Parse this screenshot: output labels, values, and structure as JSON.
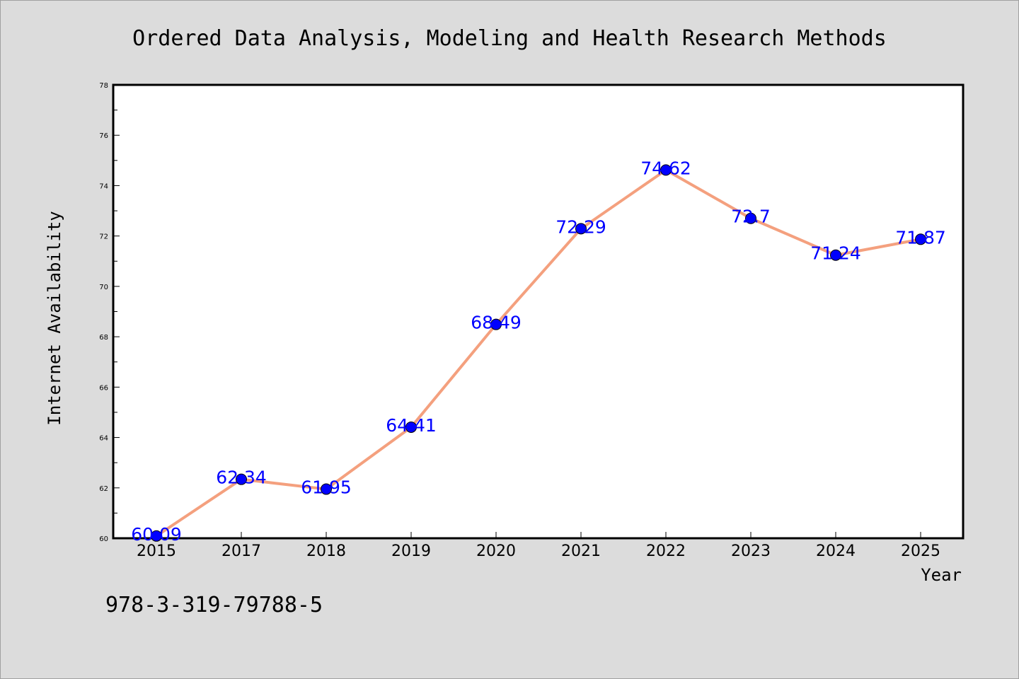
{
  "chart_data": {
    "type": "line",
    "title": "Ordered Data Analysis, Modeling and Health Research Methods",
    "xlabel": "Year",
    "ylabel": "Internet Availability",
    "categories": [
      "2015",
      "2017",
      "2018",
      "2019",
      "2020",
      "2021",
      "2022",
      "2023",
      "2024",
      "2025"
    ],
    "series": [
      {
        "values": [
          60.09,
          62.34,
          61.95,
          64.41,
          68.49,
          72.29,
          74.62,
          72.7,
          71.24,
          71.87
        ],
        "data_labels": [
          "60.09",
          "62.34",
          "61.95",
          "64.41",
          "68.49",
          "72.29",
          "74.62",
          "72.7",
          "71.24",
          "71.87"
        ],
        "line_color": "#f4a07e",
        "marker_color": "#0000ff"
      }
    ],
    "ylim": [
      60,
      78
    ],
    "yticks": [
      "60",
      "62",
      "64",
      "66",
      "68",
      "70",
      "72",
      "74",
      "76",
      "78"
    ],
    "grid": false,
    "legend": "none"
  },
  "footer_text": "978-3-319-79788-5",
  "colors": {
    "background": "#dcdcdc",
    "plot_background": "#ffffff",
    "data_label": "#0000ff"
  }
}
